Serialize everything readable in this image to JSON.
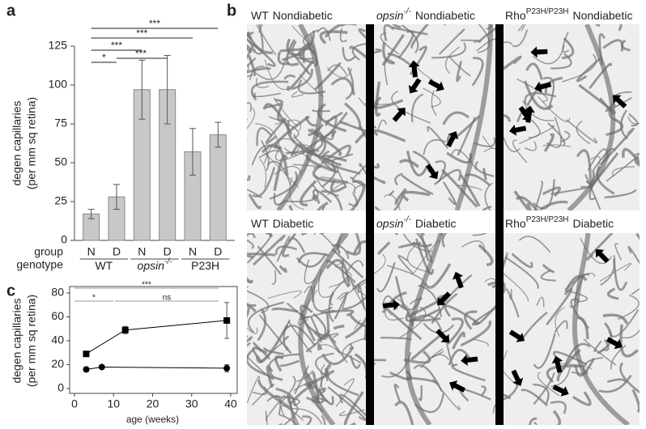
{
  "chart_data": [
    {
      "type": "bar",
      "panel": "a",
      "y_label": [
        "degen capillaries",
        "(per mm sq retina)"
      ],
      "category_row_label": "group",
      "group_row_label": "genotype",
      "categories": [
        "N",
        "D",
        "N",
        "D",
        "N",
        "D"
      ],
      "groups": [
        {
          "name": "WT"
        },
        {
          "name": "opsin",
          "sup": "-/-"
        },
        {
          "name": "P23H"
        }
      ],
      "values": [
        17,
        28,
        97,
        97,
        57,
        68
      ],
      "errors": [
        3,
        8,
        19,
        22,
        15,
        8
      ],
      "color": "#c8c8c8",
      "ylim": [
        0,
        125
      ],
      "yticks": [
        0,
        25,
        50,
        75,
        100,
        125
      ],
      "significance": [
        "*",
        "***",
        "***",
        "***",
        "***"
      ]
    },
    {
      "type": "line",
      "panel": "c",
      "y_label": [
        "degen capillaries",
        "(per mm sq retina)"
      ],
      "x_label": "age (weeks)",
      "xlim": [
        0,
        40
      ],
      "xticks": [
        0,
        10,
        20,
        30,
        40
      ],
      "ylim": [
        0,
        80
      ],
      "yticks": [
        0,
        20,
        40,
        60,
        80
      ],
      "series": [
        {
          "color": "#000000",
          "marker": "square",
          "x": [
            3,
            13,
            39
          ],
          "values": [
            29,
            49,
            57
          ],
          "errors": [
            1,
            3,
            15
          ]
        },
        {
          "color": "#000000",
          "marker": "circle",
          "x": [
            3,
            7,
            39
          ],
          "values": [
            16,
            18,
            17
          ],
          "errors": [
            2,
            1,
            3
          ]
        }
      ],
      "significance": [
        "*",
        "***",
        "ns"
      ]
    }
  ],
  "image_panel": {
    "panel": "b",
    "labels": [
      {
        "name": "WT",
        "condition": "Nondiabetic"
      },
      {
        "name": "opsin",
        "sup": "-/-",
        "condition": "Nondiabetic"
      },
      {
        "name": "Rho",
        "sup": "P23H/P23H",
        "condition": "Nondiabetic"
      },
      {
        "name": "WT",
        "condition": "Diabetic"
      },
      {
        "name": "opsin",
        "sup": "-/-",
        "condition": "Diabetic"
      },
      {
        "name": "Rho",
        "sup": "P23H/P23H",
        "condition": "Diabetic"
      }
    ]
  }
}
